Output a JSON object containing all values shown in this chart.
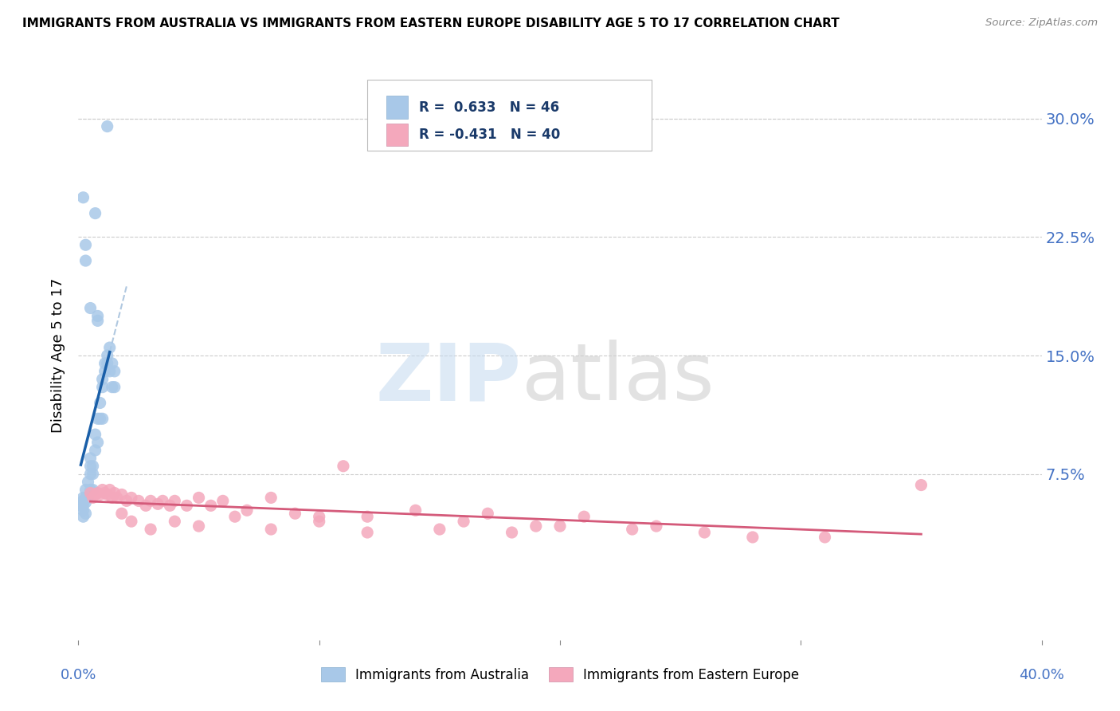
{
  "title": "IMMIGRANTS FROM AUSTRALIA VS IMMIGRANTS FROM EASTERN EUROPE DISABILITY AGE 5 TO 17 CORRELATION CHART",
  "source": "Source: ZipAtlas.com",
  "ylabel": "Disability Age 5 to 17",
  "yticks": [
    0.0,
    0.075,
    0.15,
    0.225,
    0.3
  ],
  "ytick_labels": [
    "",
    "7.5%",
    "15.0%",
    "22.5%",
    "30.0%"
  ],
  "xlim": [
    0.0,
    0.4
  ],
  "ylim": [
    -0.03,
    0.33
  ],
  "australia_color": "#a8c8e8",
  "eastern_europe_color": "#f4a8bc",
  "australia_line_color": "#1a5fa8",
  "eastern_europe_line_color": "#d45a7a",
  "australia_dash_color": "#b0c8e0",
  "australia_points": [
    [
      0.002,
      0.06
    ],
    [
      0.002,
      0.055
    ],
    [
      0.003,
      0.06
    ],
    [
      0.003,
      0.05
    ],
    [
      0.003,
      0.065
    ],
    [
      0.004,
      0.06
    ],
    [
      0.004,
      0.07
    ],
    [
      0.005,
      0.065
    ],
    [
      0.005,
      0.075
    ],
    [
      0.005,
      0.08
    ],
    [
      0.005,
      0.085
    ],
    [
      0.006,
      0.075
    ],
    [
      0.006,
      0.08
    ],
    [
      0.007,
      0.09
    ],
    [
      0.007,
      0.1
    ],
    [
      0.008,
      0.095
    ],
    [
      0.008,
      0.11
    ],
    [
      0.009,
      0.11
    ],
    [
      0.009,
      0.12
    ],
    [
      0.01,
      0.11
    ],
    [
      0.01,
      0.13
    ],
    [
      0.01,
      0.135
    ],
    [
      0.011,
      0.14
    ],
    [
      0.011,
      0.145
    ],
    [
      0.012,
      0.15
    ],
    [
      0.012,
      0.145
    ],
    [
      0.013,
      0.155
    ],
    [
      0.013,
      0.14
    ],
    [
      0.014,
      0.13
    ],
    [
      0.014,
      0.145
    ],
    [
      0.015,
      0.14
    ],
    [
      0.015,
      0.13
    ],
    [
      0.002,
      0.25
    ],
    [
      0.007,
      0.24
    ],
    [
      0.003,
      0.22
    ],
    [
      0.003,
      0.21
    ],
    [
      0.005,
      0.18
    ],
    [
      0.008,
      0.175
    ],
    [
      0.008,
      0.172
    ],
    [
      0.001,
      0.055
    ],
    [
      0.002,
      0.058
    ],
    [
      0.002,
      0.052
    ],
    [
      0.002,
      0.048
    ],
    [
      0.003,
      0.057
    ],
    [
      0.012,
      0.295
    ],
    [
      0.006,
      0.065
    ]
  ],
  "eastern_europe_points": [
    [
      0.005,
      0.063
    ],
    [
      0.006,
      0.06
    ],
    [
      0.007,
      0.062
    ],
    [
      0.008,
      0.063
    ],
    [
      0.009,
      0.062
    ],
    [
      0.01,
      0.065
    ],
    [
      0.011,
      0.063
    ],
    [
      0.012,
      0.062
    ],
    [
      0.013,
      0.065
    ],
    [
      0.014,
      0.06
    ],
    [
      0.015,
      0.063
    ],
    [
      0.016,
      0.06
    ],
    [
      0.018,
      0.062
    ],
    [
      0.02,
      0.058
    ],
    [
      0.022,
      0.06
    ],
    [
      0.025,
      0.058
    ],
    [
      0.028,
      0.055
    ],
    [
      0.03,
      0.058
    ],
    [
      0.033,
      0.056
    ],
    [
      0.035,
      0.058
    ],
    [
      0.038,
      0.055
    ],
    [
      0.04,
      0.058
    ],
    [
      0.045,
      0.055
    ],
    [
      0.05,
      0.06
    ],
    [
      0.055,
      0.055
    ],
    [
      0.06,
      0.058
    ],
    [
      0.07,
      0.052
    ],
    [
      0.08,
      0.06
    ],
    [
      0.09,
      0.05
    ],
    [
      0.1,
      0.048
    ],
    [
      0.11,
      0.08
    ],
    [
      0.12,
      0.048
    ],
    [
      0.14,
      0.052
    ],
    [
      0.16,
      0.045
    ],
    [
      0.17,
      0.05
    ],
    [
      0.19,
      0.042
    ],
    [
      0.21,
      0.048
    ],
    [
      0.24,
      0.042
    ],
    [
      0.28,
      0.035
    ],
    [
      0.018,
      0.05
    ],
    [
      0.022,
      0.045
    ],
    [
      0.03,
      0.04
    ],
    [
      0.04,
      0.045
    ],
    [
      0.05,
      0.042
    ],
    [
      0.065,
      0.048
    ],
    [
      0.08,
      0.04
    ],
    [
      0.1,
      0.045
    ],
    [
      0.12,
      0.038
    ],
    [
      0.15,
      0.04
    ],
    [
      0.18,
      0.038
    ],
    [
      0.2,
      0.042
    ],
    [
      0.23,
      0.04
    ],
    [
      0.26,
      0.038
    ],
    [
      0.31,
      0.035
    ],
    [
      0.35,
      0.068
    ]
  ],
  "figsize": [
    14.06,
    8.92
  ],
  "dpi": 100
}
